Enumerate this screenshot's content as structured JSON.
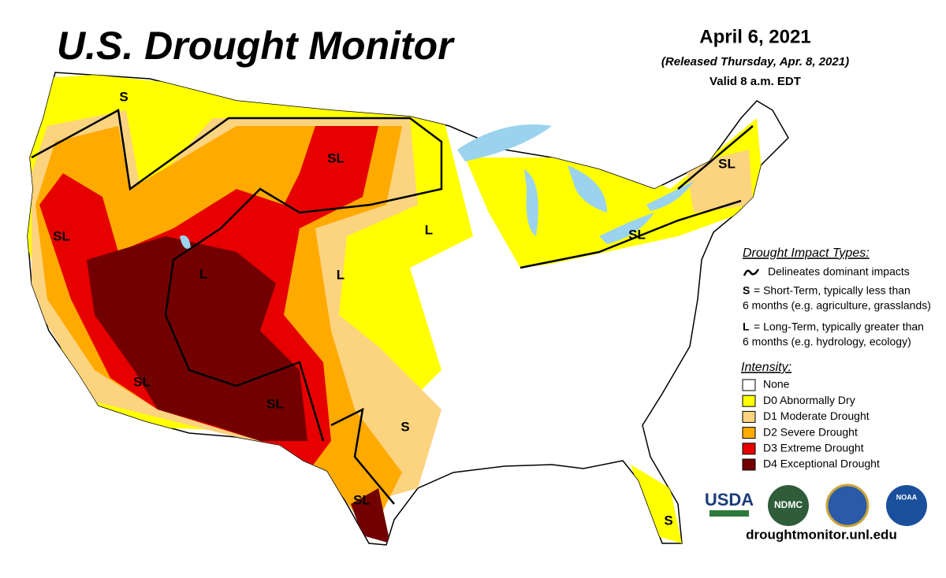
{
  "header": {
    "title": "U.S. Drought Monitor",
    "date": "April 6, 2021",
    "released": "(Released Thursday, Apr. 8, 2021)",
    "valid": "Valid 8 a.m. EDT"
  },
  "impact_types": {
    "heading": "Drought Impact Types:",
    "line_text": "Delineates dominant impacts",
    "short_key": "S",
    "short_text": "= Short-Term, typically less than",
    "short_text2": "6 months (e.g. agriculture, grasslands)",
    "long_key": "L",
    "long_text": "= Long-Term, typically greater than",
    "long_text2": "6 months (e.g. hydrology, ecology)"
  },
  "intensity": {
    "heading": "Intensity:",
    "items": [
      {
        "label": "None",
        "color": "#ffffff"
      },
      {
        "label": "D0 Abnormally Dry",
        "color": "#ffff00"
      },
      {
        "label": "D1 Moderate Drought",
        "color": "#fcd37f"
      },
      {
        "label": "D2 Severe Drought",
        "color": "#ffaa00"
      },
      {
        "label": "D3 Extreme Drought",
        "color": "#e60000"
      },
      {
        "label": "D4 Exceptional Drought",
        "color": "#730000"
      }
    ]
  },
  "map": {
    "labels": [
      "S",
      "SL",
      "SL",
      "SL",
      "L",
      "L",
      "L",
      "SL",
      "SL",
      "SL",
      "S",
      "SL",
      "S"
    ]
  },
  "logos": [
    "USDA",
    "NDMC",
    "NOAA"
  ],
  "footer": {
    "url": "droughtmonitor.unl.edu"
  }
}
